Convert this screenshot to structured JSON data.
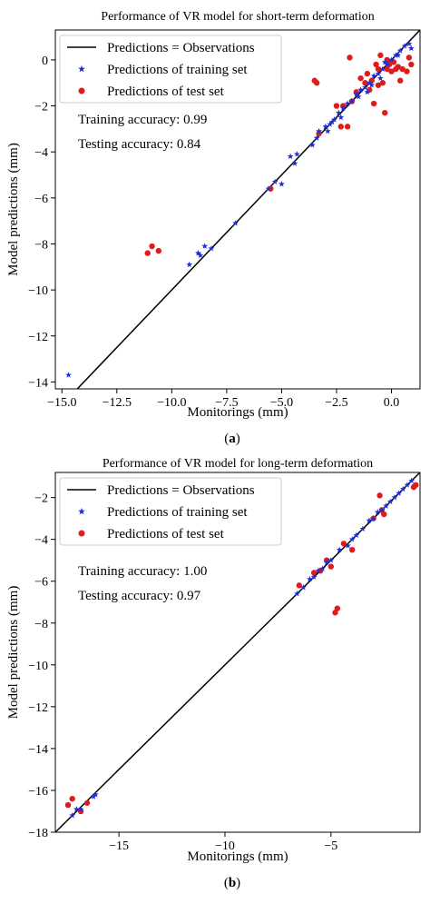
{
  "chart_data": [
    {
      "type": "scatter",
      "title": "Performance of VR model for short-term deformation",
      "xlabel": "Monitorings (mm)",
      "ylabel": "Model predictions (mm)",
      "caption": "(a)",
      "xlim": [
        -15.3,
        1.3
      ],
      "ylim": [
        -14.3,
        1.3
      ],
      "xticks": [
        -15.0,
        -12.5,
        -10.0,
        -7.5,
        -5.0,
        -2.5,
        0.0
      ],
      "xtick_labels": [
        "−15.0",
        "−12.5",
        "−10.0",
        "−7.5",
        "−5.0",
        "−2.5",
        "0.0"
      ],
      "yticks": [
        -14,
        -12,
        -10,
        -8,
        -6,
        -4,
        -2,
        0
      ],
      "ytick_labels": [
        "−14",
        "−12",
        "−10",
        "−8",
        "−6",
        "−4",
        "−2",
        "0"
      ],
      "legend_position": "top-left",
      "annotations": [
        "Training accuracy: 0.99",
        "Testing accuracy: 0.84"
      ],
      "series": [
        {
          "name": "Predictions = Observations",
          "kind": "line",
          "color": "#000000",
          "points": [
            [
              -15.3,
              -15.3
            ],
            [
              1.3,
              1.3
            ]
          ]
        },
        {
          "name": "Predictions of training set",
          "kind": "star",
          "color": "#1f2fd6",
          "points": [
            [
              -14.7,
              -13.7
            ],
            [
              -9.2,
              -8.9
            ],
            [
              -8.8,
              -8.4
            ],
            [
              -8.7,
              -8.5
            ],
            [
              -8.5,
              -8.1
            ],
            [
              -8.2,
              -8.2
            ],
            [
              -7.1,
              -7.1
            ],
            [
              -5.6,
              -5.6
            ],
            [
              -5.3,
              -5.3
            ],
            [
              -5.0,
              -5.4
            ],
            [
              -4.6,
              -4.2
            ],
            [
              -4.4,
              -4.5
            ],
            [
              -4.3,
              -4.1
            ],
            [
              -3.6,
              -3.7
            ],
            [
              -3.4,
              -3.4
            ],
            [
              -3.3,
              -3.1
            ],
            [
              -3.0,
              -2.9
            ],
            [
              -2.9,
              -3.1
            ],
            [
              -2.8,
              -2.8
            ],
            [
              -2.7,
              -2.7
            ],
            [
              -2.6,
              -2.6
            ],
            [
              -2.4,
              -2.3
            ],
            [
              -2.2,
              -2.1
            ],
            [
              -2.0,
              -1.9
            ],
            [
              -1.8,
              -1.8
            ],
            [
              -1.6,
              -1.5
            ],
            [
              -1.4,
              -1.3
            ],
            [
              -1.2,
              -1.2
            ],
            [
              -1.0,
              -1.0
            ],
            [
              -0.8,
              -0.7
            ],
            [
              -0.6,
              -0.6
            ],
            [
              -0.4,
              -0.4
            ],
            [
              -0.2,
              -0.2
            ],
            [
              0.0,
              0.0
            ],
            [
              0.2,
              0.2
            ],
            [
              0.4,
              0.4
            ],
            [
              0.6,
              0.6
            ],
            [
              0.8,
              0.7
            ],
            [
              0.9,
              0.5
            ],
            [
              -1.1,
              -1.4
            ],
            [
              -0.9,
              -1.1
            ],
            [
              -0.5,
              -0.8
            ],
            [
              -1.5,
              -1.6
            ],
            [
              -2.3,
              -2.5
            ],
            [
              -0.3,
              -0.1
            ],
            [
              0.3,
              0.2
            ]
          ]
        },
        {
          "name": "Predictions of test set",
          "kind": "circle",
          "color": "#e01b1b",
          "points": [
            [
              -11.1,
              -8.4
            ],
            [
              -10.9,
              -8.1
            ],
            [
              -10.6,
              -8.3
            ],
            [
              -5.5,
              -5.6
            ],
            [
              -3.5,
              -0.9
            ],
            [
              -3.4,
              -1.0
            ],
            [
              -3.3,
              -3.2
            ],
            [
              -2.5,
              -2.0
            ],
            [
              -2.3,
              -2.9
            ],
            [
              -2.2,
              -2.0
            ],
            [
              -2.0,
              -2.9
            ],
            [
              -1.9,
              0.1
            ],
            [
              -1.8,
              -1.8
            ],
            [
              -1.6,
              -1.4
            ],
            [
              -1.4,
              -0.8
            ],
            [
              -1.2,
              -1.0
            ],
            [
              -1.0,
              -1.3
            ],
            [
              -0.9,
              -0.9
            ],
            [
              -0.8,
              -1.9
            ],
            [
              -0.7,
              -0.2
            ],
            [
              -0.6,
              -0.4
            ],
            [
              -0.5,
              0.2
            ],
            [
              -0.4,
              -1.0
            ],
            [
              -0.3,
              -2.3
            ],
            [
              -0.2,
              -0.4
            ],
            [
              -0.1,
              -0.2
            ],
            [
              0.0,
              -0.5
            ],
            [
              0.1,
              -0.1
            ],
            [
              0.2,
              -0.4
            ],
            [
              0.3,
              -0.3
            ],
            [
              0.5,
              -0.4
            ],
            [
              0.7,
              -0.5
            ],
            [
              0.8,
              0.1
            ],
            [
              -0.6,
              -1.1
            ],
            [
              -1.1,
              -0.6
            ],
            [
              0.4,
              -0.9
            ],
            [
              -0.2,
              0.0
            ],
            [
              0.9,
              -0.2
            ]
          ]
        }
      ]
    },
    {
      "type": "scatter",
      "title": "Performance of VR model for long-term deformation",
      "xlabel": "Monitorings (mm)",
      "ylabel": "Model predictions (mm)",
      "caption": "(b)",
      "xlim": [
        -18.0,
        -0.8
      ],
      "ylim": [
        -18.0,
        -0.8
      ],
      "xticks": [
        -15,
        -10,
        -5
      ],
      "xtick_labels": [
        "−15",
        "−10",
        "−5"
      ],
      "yticks": [
        -18,
        -16,
        -14,
        -12,
        -10,
        -8,
        -6,
        -4,
        -2
      ],
      "ytick_labels": [
        "−18",
        "−16",
        "−14",
        "−12",
        "−10",
        "−8",
        "−6",
        "−4",
        "−2"
      ],
      "legend_position": "top-left",
      "annotations": [
        "Training accuracy: 1.00",
        "Testing accuracy: 0.97"
      ],
      "series": [
        {
          "name": "Predictions = Observations",
          "kind": "line",
          "color": "#000000",
          "points": [
            [
              -18.0,
              -18.0
            ],
            [
              -0.8,
              -0.8
            ]
          ]
        },
        {
          "name": "Predictions of training set",
          "kind": "star",
          "color": "#1f2fd6",
          "points": [
            [
              -17.2,
              -17.2
            ],
            [
              -17.0,
              -16.9
            ],
            [
              -16.8,
              -16.9
            ],
            [
              -16.2,
              -16.3
            ],
            [
              -16.1,
              -16.2
            ],
            [
              -6.6,
              -6.6
            ],
            [
              -6.3,
              -6.3
            ],
            [
              -6.0,
              -5.9
            ],
            [
              -5.8,
              -5.8
            ],
            [
              -5.6,
              -5.5
            ],
            [
              -5.4,
              -5.4
            ],
            [
              -5.2,
              -5.1
            ],
            [
              -5.0,
              -5.0
            ],
            [
              -4.6,
              -4.5
            ],
            [
              -4.2,
              -4.3
            ],
            [
              -4.0,
              -4.0
            ],
            [
              -3.8,
              -3.8
            ],
            [
              -3.5,
              -3.5
            ],
            [
              -3.2,
              -3.1
            ],
            [
              -3.0,
              -3.0
            ],
            [
              -2.8,
              -2.7
            ],
            [
              -2.6,
              -2.6
            ],
            [
              -2.4,
              -2.4
            ],
            [
              -2.2,
              -2.2
            ],
            [
              -2.0,
              -2.0
            ],
            [
              -1.8,
              -1.8
            ],
            [
              -1.6,
              -1.6
            ],
            [
              -1.4,
              -1.4
            ],
            [
              -1.2,
              -1.2
            ]
          ]
        },
        {
          "name": "Predictions of test set",
          "kind": "circle",
          "color": "#e01b1b",
          "points": [
            [
              -17.4,
              -16.7
            ],
            [
              -17.2,
              -16.4
            ],
            [
              -16.8,
              -17.0
            ],
            [
              -16.5,
              -16.6
            ],
            [
              -6.5,
              -6.2
            ],
            [
              -5.8,
              -5.6
            ],
            [
              -5.5,
              -5.5
            ],
            [
              -5.2,
              -5.0
            ],
            [
              -5.0,
              -5.3
            ],
            [
              -4.8,
              -7.5
            ],
            [
              -4.7,
              -7.3
            ],
            [
              -4.4,
              -4.2
            ],
            [
              -4.0,
              -4.5
            ],
            [
              -3.0,
              -3.0
            ],
            [
              -2.7,
              -1.9
            ],
            [
              -2.6,
              -2.6
            ],
            [
              -2.5,
              -2.8
            ],
            [
              -1.1,
              -1.5
            ],
            [
              -1.0,
              -1.4
            ]
          ]
        }
      ]
    }
  ]
}
